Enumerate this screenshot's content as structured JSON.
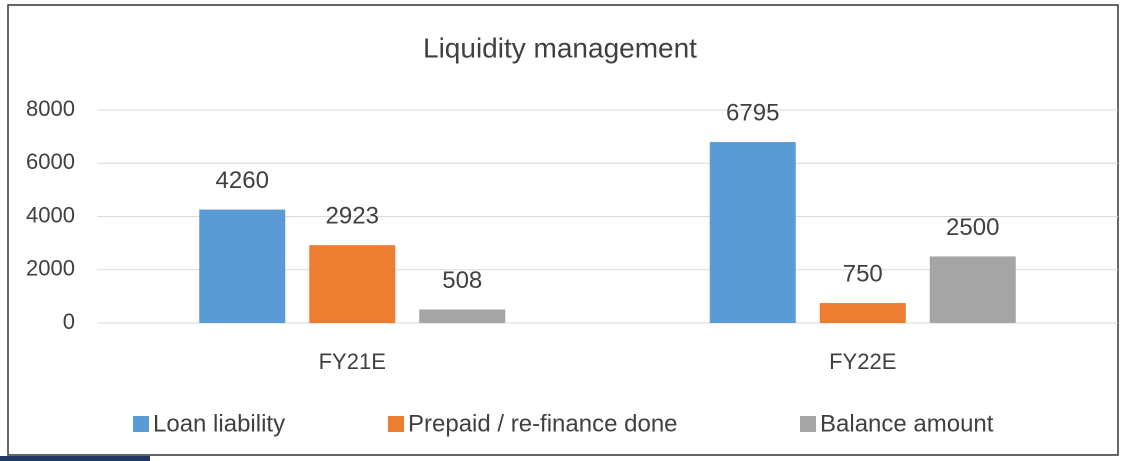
{
  "chart_data": {
    "type": "bar",
    "title": "Liquidity management",
    "categories": [
      "FY21E",
      "FY22E"
    ],
    "series": [
      {
        "name": "Loan liability",
        "color": "#5b9bd5",
        "values": [
          4260,
          6795
        ]
      },
      {
        "name": "Prepaid / re-finance done",
        "color": "#ed7d31",
        "values": [
          2923,
          750
        ]
      },
      {
        "name": "Balance amount",
        "color": "#a5a5a5",
        "values": [
          508,
          2500
        ]
      }
    ],
    "ylim": [
      0,
      8000
    ],
    "yticks": [
      0,
      2000,
      4000,
      6000,
      8000
    ],
    "grid": true,
    "legend": "bottom"
  }
}
